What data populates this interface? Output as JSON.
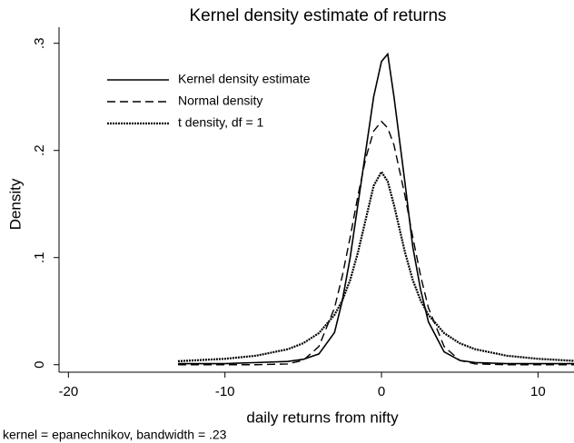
{
  "chart_data": {
    "type": "line",
    "title": "Kernel density estimate of returns",
    "xlabel": "daily returns from nifty",
    "ylabel": "Density",
    "note": "kernel = epanechnikov, bandwidth = .23",
    "x": [
      -13,
      -10,
      -8,
      -6,
      -5,
      -4,
      -3,
      -2.5,
      -2,
      -1.5,
      -1,
      -0.5,
      0,
      0.4,
      0.8,
      1.5,
      2,
      2.5,
      3,
      4,
      5,
      6,
      8,
      10,
      12.3
    ],
    "series": [
      {
        "name": "Kernel density estimate",
        "color": "#000000",
        "style": "solid",
        "values": [
          0.001,
          0.001,
          0.002,
          0.003,
          0.005,
          0.01,
          0.03,
          0.06,
          0.1,
          0.15,
          0.2,
          0.25,
          0.283,
          0.29,
          0.25,
          0.17,
          0.11,
          0.07,
          0.04,
          0.012,
          0.004,
          0.002,
          0.001,
          0.001,
          0.001
        ]
      },
      {
        "name": "Normal density",
        "color": "#000000",
        "style": "dashed",
        "values": [
          0,
          0,
          0,
          0.0007,
          0.004,
          0.017,
          0.053,
          0.083,
          0.119,
          0.158,
          0.193,
          0.218,
          0.227,
          0.221,
          0.205,
          0.158,
          0.119,
          0.083,
          0.053,
          0.017,
          0.004,
          0.0007,
          0,
          0,
          0
        ]
      },
      {
        "name": "t density, df = 1",
        "color": "#000000",
        "style": "dotted",
        "values": [
          0.0033,
          0.0055,
          0.0084,
          0.0144,
          0.02,
          0.0295,
          0.0465,
          0.06,
          0.079,
          0.105,
          0.136,
          0.167,
          0.18,
          0.171,
          0.149,
          0.105,
          0.079,
          0.06,
          0.0465,
          0.0295,
          0.02,
          0.0144,
          0.0084,
          0.0055,
          0.0036
        ]
      }
    ],
    "xlim": [
      -20.6,
      12.3
    ],
    "xticks": [
      -20,
      -10,
      0,
      10
    ],
    "ylim": [
      -0.007,
      0.315
    ],
    "yticks": [
      0,
      {
        "value": 0.1,
        "label": ".1"
      },
      {
        "value": 0.2,
        "label": ".2"
      },
      {
        "value": 0.3,
        "label": ".3"
      }
    ],
    "grid": false,
    "legend": "upper left"
  }
}
